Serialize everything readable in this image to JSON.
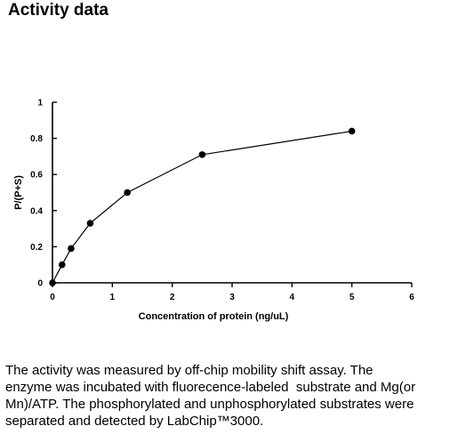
{
  "page": {
    "heading": "Activity data"
  },
  "chart_data": {
    "type": "line",
    "title": "",
    "xlabel": "Concentration of protein (ng/uL)",
    "ylabel": "P/(P+S)",
    "xlim": [
      0,
      6
    ],
    "ylim": [
      0,
      1
    ],
    "x_ticks": [
      0,
      1,
      2,
      3,
      4,
      5,
      6
    ],
    "y_ticks": [
      0,
      0.2,
      0.4,
      0.6,
      0.8,
      1
    ],
    "x_tick_labels": [
      "0",
      "1",
      "2",
      "3",
      "4",
      "5",
      "6"
    ],
    "y_tick_labels": [
      "0",
      "0.2",
      "0.4",
      "0.6",
      "0.8",
      "1"
    ],
    "grid": false,
    "legend": "none",
    "series": [
      {
        "x": [
          0,
          0.16,
          0.31,
          0.63,
          1.25,
          2.5,
          5.0
        ],
        "y": [
          0,
          0.1,
          0.19,
          0.33,
          0.5,
          0.71,
          0.84
        ],
        "color": "#000000",
        "marker": "circle"
      }
    ]
  },
  "caption": {
    "lines": [
      "The activity was measured by off-chip mobility shift assay. The",
      "enzyme was incubated with fluorecence-labeled  substrate and Mg(or",
      "Mn)/ATP. The phosphorylated and unphosphorylated substrates were",
      "separated and detected by LabChip™3000."
    ]
  }
}
